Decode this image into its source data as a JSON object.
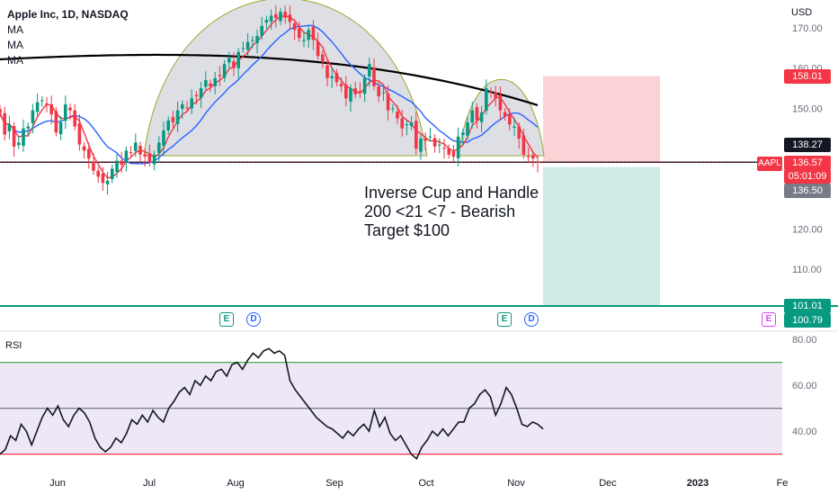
{
  "header": {
    "symbol_title": "Apple Inc, 1D, NASDAQ",
    "indicators": [
      "MA",
      "MA",
      "MA"
    ],
    "currency": "USD"
  },
  "annotation": {
    "line1": "Inverse Cup and Handle",
    "line2": "200 <21 <7 - Bearish",
    "line3": "Target $100"
  },
  "price_tags": {
    "stop": "158.01",
    "ma200": "138.27",
    "symbol": "AAPL",
    "last": "136.57",
    "countdown": "05:01:09",
    "neckline": "136.50",
    "target1": "101.01",
    "target2": "100.79"
  },
  "events": [
    {
      "kind": "E",
      "label": "E"
    },
    {
      "kind": "D",
      "label": "D"
    },
    {
      "kind": "E",
      "label": "E"
    },
    {
      "kind": "D",
      "label": "D"
    },
    {
      "kind": "E",
      "label": "E"
    }
  ],
  "rsi": {
    "label": "RSI"
  },
  "colors": {
    "up": "#089981",
    "down": "#f23645",
    "ma7": "#f23645",
    "ma21": "#2962ff",
    "ma200": "#000000",
    "cup_fill": "#d1d4dc",
    "cup_stroke": "#9aa82e",
    "stop_zone": "#fbd3d6",
    "target_zone": "#cdeae4",
    "rsi_band": "#ede7f6",
    "rsi_upper": "#4caf50",
    "rsi_lower": "#f23645"
  },
  "chart_data": [
    {
      "type": "candlestick",
      "title": "Apple Inc, 1D, NASDAQ",
      "ylabel": "USD",
      "yticks": [
        110,
        120,
        130,
        140,
        150,
        160,
        170
      ],
      "ytick_labels": [
        "110.00",
        "120.00",
        "",
        "",
        "150.00",
        "160.00",
        "170.00"
      ],
      "xticks": [
        "Jun",
        "Jul",
        "Aug",
        "Sep",
        "Oct",
        "Nov",
        "Dec",
        "2023",
        "Fe"
      ],
      "ylim": [
        100,
        177
      ],
      "close_series": [
        148.8,
        143.5,
        146.0,
        140.5,
        141.5,
        145.0,
        145.5,
        149.5,
        151.5,
        152.0,
        151.0,
        148.5,
        144.0,
        146.5,
        151.0,
        149.5,
        145.5,
        141.0,
        139.5,
        137.5,
        134.5,
        133.0,
        131.5,
        132.0,
        135.0,
        137.0,
        136.0,
        139.5,
        139.0,
        141.5,
        138.5,
        138.0,
        136.5,
        138.5,
        141.5,
        144.5,
        147.0,
        146.5,
        149.5,
        151.0,
        150.0,
        152.5,
        153.0,
        155.0,
        157.0,
        155.5,
        157.5,
        158.0,
        161.0,
        162.5,
        160.0,
        164.0,
        165.0,
        166.5,
        167.0,
        168.0,
        170.5,
        172.0,
        173.0,
        172.5,
        174.0,
        172.5,
        171.5,
        169.5,
        167.5,
        167.0,
        169.5,
        167.0,
        163.0,
        161.5,
        157.5,
        158.0,
        156.5,
        155.5,
        152.5,
        155.0,
        153.5,
        154.0,
        157.5,
        161.0,
        155.5,
        153.0,
        154.0,
        149.5,
        150.0,
        147.5,
        145.0,
        146.0,
        146.5,
        140.0,
        142.5,
        142.0,
        143.0,
        140.5,
        141.0,
        140.0,
        138.5,
        138.0,
        143.0,
        144.0,
        146.5,
        149.5,
        147.0,
        149.0,
        155.0,
        154.0,
        152.5,
        149.5,
        148.0,
        146.0,
        145.5,
        142.5,
        138.5,
        138.0,
        137.5,
        136.57
      ],
      "moving_averages": [
        {
          "name": "MA",
          "period_label": "7",
          "role": "fast"
        },
        {
          "name": "MA",
          "period_label": "21",
          "role": "medium"
        },
        {
          "name": "MA",
          "period_label": "200",
          "role": "slow"
        }
      ],
      "levels": {
        "neckline": 136.5,
        "ma200_last": 138.27,
        "stop": 158.01,
        "target": 101.01,
        "target_alt": 100.79
      },
      "grid": false,
      "legend_position": "top-left"
    },
    {
      "type": "line",
      "title": "RSI",
      "yticks": [
        40,
        60,
        80
      ],
      "ytick_labels": [
        "40.00",
        "60.00",
        "80.00"
      ],
      "ylim": [
        25,
        82
      ],
      "bands": {
        "upper": 70,
        "middle": 50,
        "lower": 30
      },
      "values": [
        30,
        32,
        38,
        36,
        43,
        40,
        34,
        40,
        46,
        50,
        47,
        51,
        45,
        42,
        47,
        50,
        48,
        44,
        37,
        33,
        31,
        33,
        37,
        35,
        39,
        45,
        43,
        47,
        44,
        49,
        46,
        44,
        50,
        53,
        57,
        59,
        56,
        62,
        60,
        64,
        62,
        66,
        67,
        64,
        69,
        70,
        67,
        71,
        74,
        72,
        75,
        76,
        74,
        75,
        73,
        62,
        58,
        55,
        52,
        49,
        46,
        44,
        42,
        41,
        39,
        37,
        40,
        38,
        41,
        43,
        40,
        49,
        42,
        46,
        39,
        36,
        38,
        34,
        30,
        28,
        33,
        36,
        40,
        38,
        41,
        38,
        41,
        44,
        44,
        50,
        52,
        56,
        58,
        55,
        47,
        52,
        59,
        56,
        50,
        43,
        42,
        44,
        43,
        41
      ],
      "legend_position": "top-left"
    }
  ]
}
